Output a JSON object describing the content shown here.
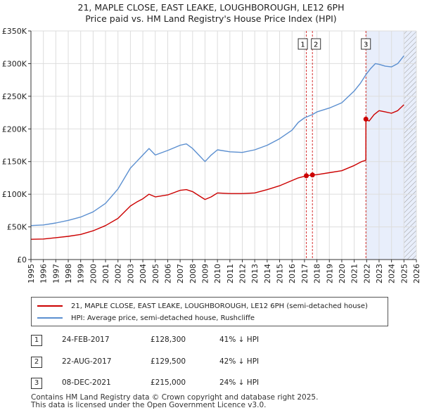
{
  "title_line1": "21, MAPLE CLOSE, EAST LEAKE, LOUGHBOROUGH, LE12 6PH",
  "title_line2": "Price paid vs. HM Land Registry's House Price Index (HPI)",
  "legend": {
    "property": "21, MAPLE CLOSE, EAST LEAKE, LOUGHBOROUGH, LE12 6PH (semi-detached house)",
    "hpi": "HPI: Average price, semi-detached house, Rushcliffe"
  },
  "transactions": [
    {
      "num": "1",
      "date": "24-FEB-2017",
      "price": "£128,300",
      "hpi": "41% ↓ HPI"
    },
    {
      "num": "2",
      "date": "22-AUG-2017",
      "price": "£129,500",
      "hpi": "42% ↓ HPI"
    },
    {
      "num": "3",
      "date": "08-DEC-2021",
      "price": "£215,000",
      "hpi": "24% ↓ HPI"
    }
  ],
  "footer_line1": "Contains HM Land Registry data © Crown copyright and database right 2025.",
  "footer_line2": "This data is licensed under the Open Government Licence v3.0.",
  "colors": {
    "property": "#cc0000",
    "hpi": "#5b8fd0",
    "shade": "#e8eefb",
    "marker": "#cc0000"
  },
  "chart_data": {
    "type": "line",
    "xlim": [
      1995,
      2026
    ],
    "ylim": [
      0,
      350000
    ],
    "x_ticks": [
      "1995",
      "1996",
      "1997",
      "1998",
      "1999",
      "2000",
      "2001",
      "2002",
      "2003",
      "2004",
      "2005",
      "2006",
      "2007",
      "2008",
      "2009",
      "2010",
      "2011",
      "2012",
      "2013",
      "2014",
      "2015",
      "2016",
      "2017",
      "2018",
      "2019",
      "2020",
      "2021",
      "2022",
      "2023",
      "2024",
      "2025",
      "2026"
    ],
    "y_ticks": [
      {
        "value": 0,
        "label": "£0"
      },
      {
        "value": 50000,
        "label": "£50K"
      },
      {
        "value": 100000,
        "label": "£100K"
      },
      {
        "value": 150000,
        "label": "£150K"
      },
      {
        "value": 200000,
        "label": "£200K"
      },
      {
        "value": 250000,
        "label": "£250K"
      },
      {
        "value": 300000,
        "label": "£300K"
      },
      {
        "value": 350000,
        "label": "£350K"
      }
    ],
    "grid": true,
    "shaded_from": 2021.94,
    "hatched_from": 2025.0,
    "series": [
      {
        "name": "21, MAPLE CLOSE, EAST LEAKE, LOUGHBOROUGH, LE12 6PH (semi-detached house)",
        "points": [
          [
            1995,
            31000
          ],
          [
            1996,
            31500
          ],
          [
            1997,
            33500
          ],
          [
            1998,
            35500
          ],
          [
            1999,
            38500
          ],
          [
            2000,
            44000
          ],
          [
            2001,
            52000
          ],
          [
            2002,
            63000
          ],
          [
            2003,
            82000
          ],
          [
            2003.5,
            88000
          ],
          [
            2004,
            93000
          ],
          [
            2004.5,
            100000
          ],
          [
            2005,
            96000
          ],
          [
            2006,
            99000
          ],
          [
            2007,
            106000
          ],
          [
            2007.5,
            107000
          ],
          [
            2008,
            104000
          ],
          [
            2008.5,
            98000
          ],
          [
            2009,
            92000
          ],
          [
            2009.5,
            96000
          ],
          [
            2010,
            102000
          ],
          [
            2011,
            101000
          ],
          [
            2012,
            101000
          ],
          [
            2013,
            102000
          ],
          [
            2014,
            107000
          ],
          [
            2015,
            113000
          ],
          [
            2016,
            121000
          ],
          [
            2016.5,
            125000
          ],
          [
            2017.15,
            128300
          ],
          [
            2017.64,
            129500
          ],
          [
            2018,
            130000
          ],
          [
            2019,
            133000
          ],
          [
            2020,
            136000
          ],
          [
            2021,
            144000
          ],
          [
            2021.6,
            150000
          ],
          [
            2021.93,
            152000
          ],
          [
            2021.94,
            215000
          ],
          [
            2022.2,
            212000
          ],
          [
            2022.6,
            222000
          ],
          [
            2023,
            228000
          ],
          [
            2023.5,
            226000
          ],
          [
            2024,
            224000
          ],
          [
            2024.5,
            228000
          ],
          [
            2025,
            237000
          ]
        ]
      },
      {
        "name": "HPI: Average price, semi-detached house, Rushcliffe",
        "points": [
          [
            1995,
            52000
          ],
          [
            1996,
            53000
          ],
          [
            1997,
            56000
          ],
          [
            1998,
            60000
          ],
          [
            1999,
            65000
          ],
          [
            2000,
            73000
          ],
          [
            2001,
            86000
          ],
          [
            2002,
            108000
          ],
          [
            2003,
            140000
          ],
          [
            2003.5,
            150000
          ],
          [
            2004,
            160000
          ],
          [
            2004.5,
            170000
          ],
          [
            2005,
            160000
          ],
          [
            2006,
            167000
          ],
          [
            2007,
            175000
          ],
          [
            2007.5,
            177000
          ],
          [
            2008,
            170000
          ],
          [
            2008.5,
            160000
          ],
          [
            2009,
            150000
          ],
          [
            2009.5,
            160000
          ],
          [
            2010,
            168000
          ],
          [
            2011,
            165000
          ],
          [
            2012,
            164000
          ],
          [
            2013,
            168000
          ],
          [
            2014,
            175000
          ],
          [
            2015,
            185000
          ],
          [
            2016,
            198000
          ],
          [
            2016.5,
            210000
          ],
          [
            2017,
            217000
          ],
          [
            2017.64,
            222000
          ],
          [
            2018,
            226000
          ],
          [
            2019,
            232000
          ],
          [
            2020,
            240000
          ],
          [
            2021,
            258000
          ],
          [
            2021.5,
            270000
          ],
          [
            2021.94,
            283000
          ],
          [
            2022.3,
            292000
          ],
          [
            2022.7,
            300000
          ],
          [
            2023,
            299000
          ],
          [
            2023.5,
            296000
          ],
          [
            2024,
            295000
          ],
          [
            2024.5,
            300000
          ],
          [
            2025,
            312000
          ]
        ]
      }
    ],
    "sale_markers": [
      {
        "label": "1",
        "x": 2017.15,
        "value": 128300
      },
      {
        "label": "2",
        "x": 2017.64,
        "value": 129500
      },
      {
        "label": "3",
        "x": 2021.94,
        "value": 215000
      }
    ]
  }
}
